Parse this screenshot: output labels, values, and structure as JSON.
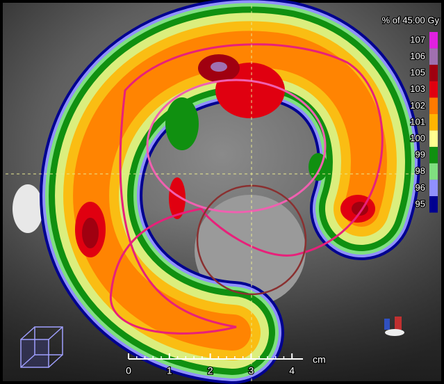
{
  "legend": {
    "title": "% of 45.00 Gy",
    "levels": [
      {
        "label": "107",
        "color": "#e020e0"
      },
      {
        "label": "106",
        "color": "#a070b0"
      },
      {
        "label": "105",
        "color": "#a00010"
      },
      {
        "label": "103",
        "color": "#e00010"
      },
      {
        "label": "102",
        "color": "#ff7a00"
      },
      {
        "label": "101",
        "color": "#ffb400"
      },
      {
        "label": "100",
        "color": "#ffff90"
      },
      {
        "label": "99",
        "color": "#109010"
      },
      {
        "label": "98",
        "color": "#80e080"
      },
      {
        "label": "96",
        "color": "#9090ff"
      },
      {
        "label": "95",
        "color": "#000090"
      }
    ]
  },
  "scale_bar": {
    "ticks": [
      "0",
      "1",
      "2",
      "3",
      "4"
    ],
    "unit": "cm"
  }
}
